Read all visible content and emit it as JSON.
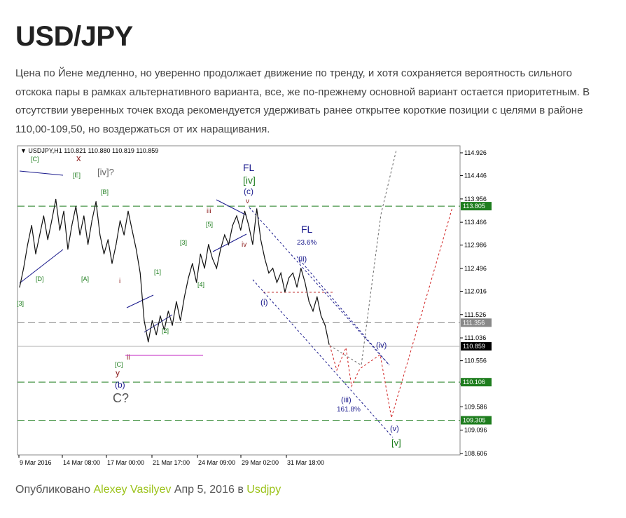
{
  "article": {
    "title": "USD/JPY",
    "description": "Цена по Йене медленно, но уверенно продолжает движение по тренду, и хотя сохраняется вероятность сильного отскока пары в рамках альтернативного варианта, все, же по-прежнему основной вариант остается приоритетным. В отсутствии уверенных точек входа рекомендуется удерживать ранее открытее короткие позиции с целями в районе 110,00-109,50, но воздержаться от их наращивания."
  },
  "footer": {
    "prefix": "Опубликовано",
    "author": "Alexey Vasilyev",
    "date": "Апр 5, 2016",
    "in_word": "в",
    "category": "Usdjpy"
  },
  "chart_data": {
    "type": "line",
    "header": "USDJPY,H1  110.821 110.880 110.819 110.859",
    "x_tick_labels": [
      "9 Mar 2016",
      "14 Mar 08:00",
      "17 Mar 00:00",
      "21 Mar 17:00",
      "24 Mar 09:00",
      "29 Mar 02:00",
      "31 Mar 18:00"
    ],
    "y_tick_labels": [
      "114.926",
      "114.446",
      "113.956",
      "113.466",
      "112.986",
      "112.496",
      "112.016",
      "111.526",
      "111.036",
      "110.556",
      "110.066",
      "109.586",
      "109.096",
      "108.606"
    ],
    "ylim": [
      108.606,
      114.926
    ],
    "price_badges": [
      {
        "label": "113.805",
        "value": 113.805,
        "color": "#1e7d1e"
      },
      {
        "label": "111.356",
        "value": 111.356,
        "color": "#888888"
      },
      {
        "label": "110.859",
        "value": 110.859,
        "color": "#000000"
      },
      {
        "label": "110.106",
        "value": 110.106,
        "color": "#1e7d1e"
      },
      {
        "label": "109.305",
        "value": 109.305,
        "color": "#1e7d1e"
      }
    ],
    "series": [
      {
        "values": [
          112.1,
          112.5,
          113.0,
          113.4,
          112.8,
          113.2,
          113.6,
          113.1,
          113.5,
          113.95,
          113.3,
          113.7,
          112.9,
          113.4,
          113.8,
          113.2,
          113.6,
          113.0,
          113.5,
          113.9,
          113.2,
          112.8,
          113.1,
          112.6,
          113.0,
          113.5,
          113.2,
          113.7,
          113.3,
          112.9,
          112.4,
          111.4,
          110.95,
          111.4,
          111.1,
          111.5,
          111.2,
          111.6,
          111.3,
          111.8,
          111.4,
          111.9,
          112.3,
          112.6,
          112.2,
          112.8,
          112.5,
          113.0,
          112.7,
          112.5,
          112.9,
          113.2,
          113.0,
          113.4,
          113.6,
          113.3,
          113.7,
          113.4,
          113.0,
          113.75,
          113.1,
          112.7,
          112.4,
          112.5,
          112.2,
          112.4,
          112.0,
          112.3,
          112.4,
          112.1,
          112.5,
          112.2,
          111.8,
          111.6,
          111.9,
          111.5,
          111.3,
          110.9
        ]
      }
    ],
    "wave_labels": [
      "[C]",
      "x",
      "[iv]?",
      "[E]",
      "[B]",
      "[D]",
      "[A]",
      "i",
      "ii",
      "[C]",
      "y",
      "(b)",
      "C?",
      "[1]",
      "[2]",
      "[3]",
      "[4]",
      "[5]",
      "iii",
      "iv",
      "FL",
      "[iv]",
      "(c)",
      "v",
      "FL",
      "23.6%",
      "(ii)",
      "(i)",
      "(iii)",
      "161.8%",
      "(iv)",
      "(v)",
      "[v]",
      "[3]"
    ]
  }
}
